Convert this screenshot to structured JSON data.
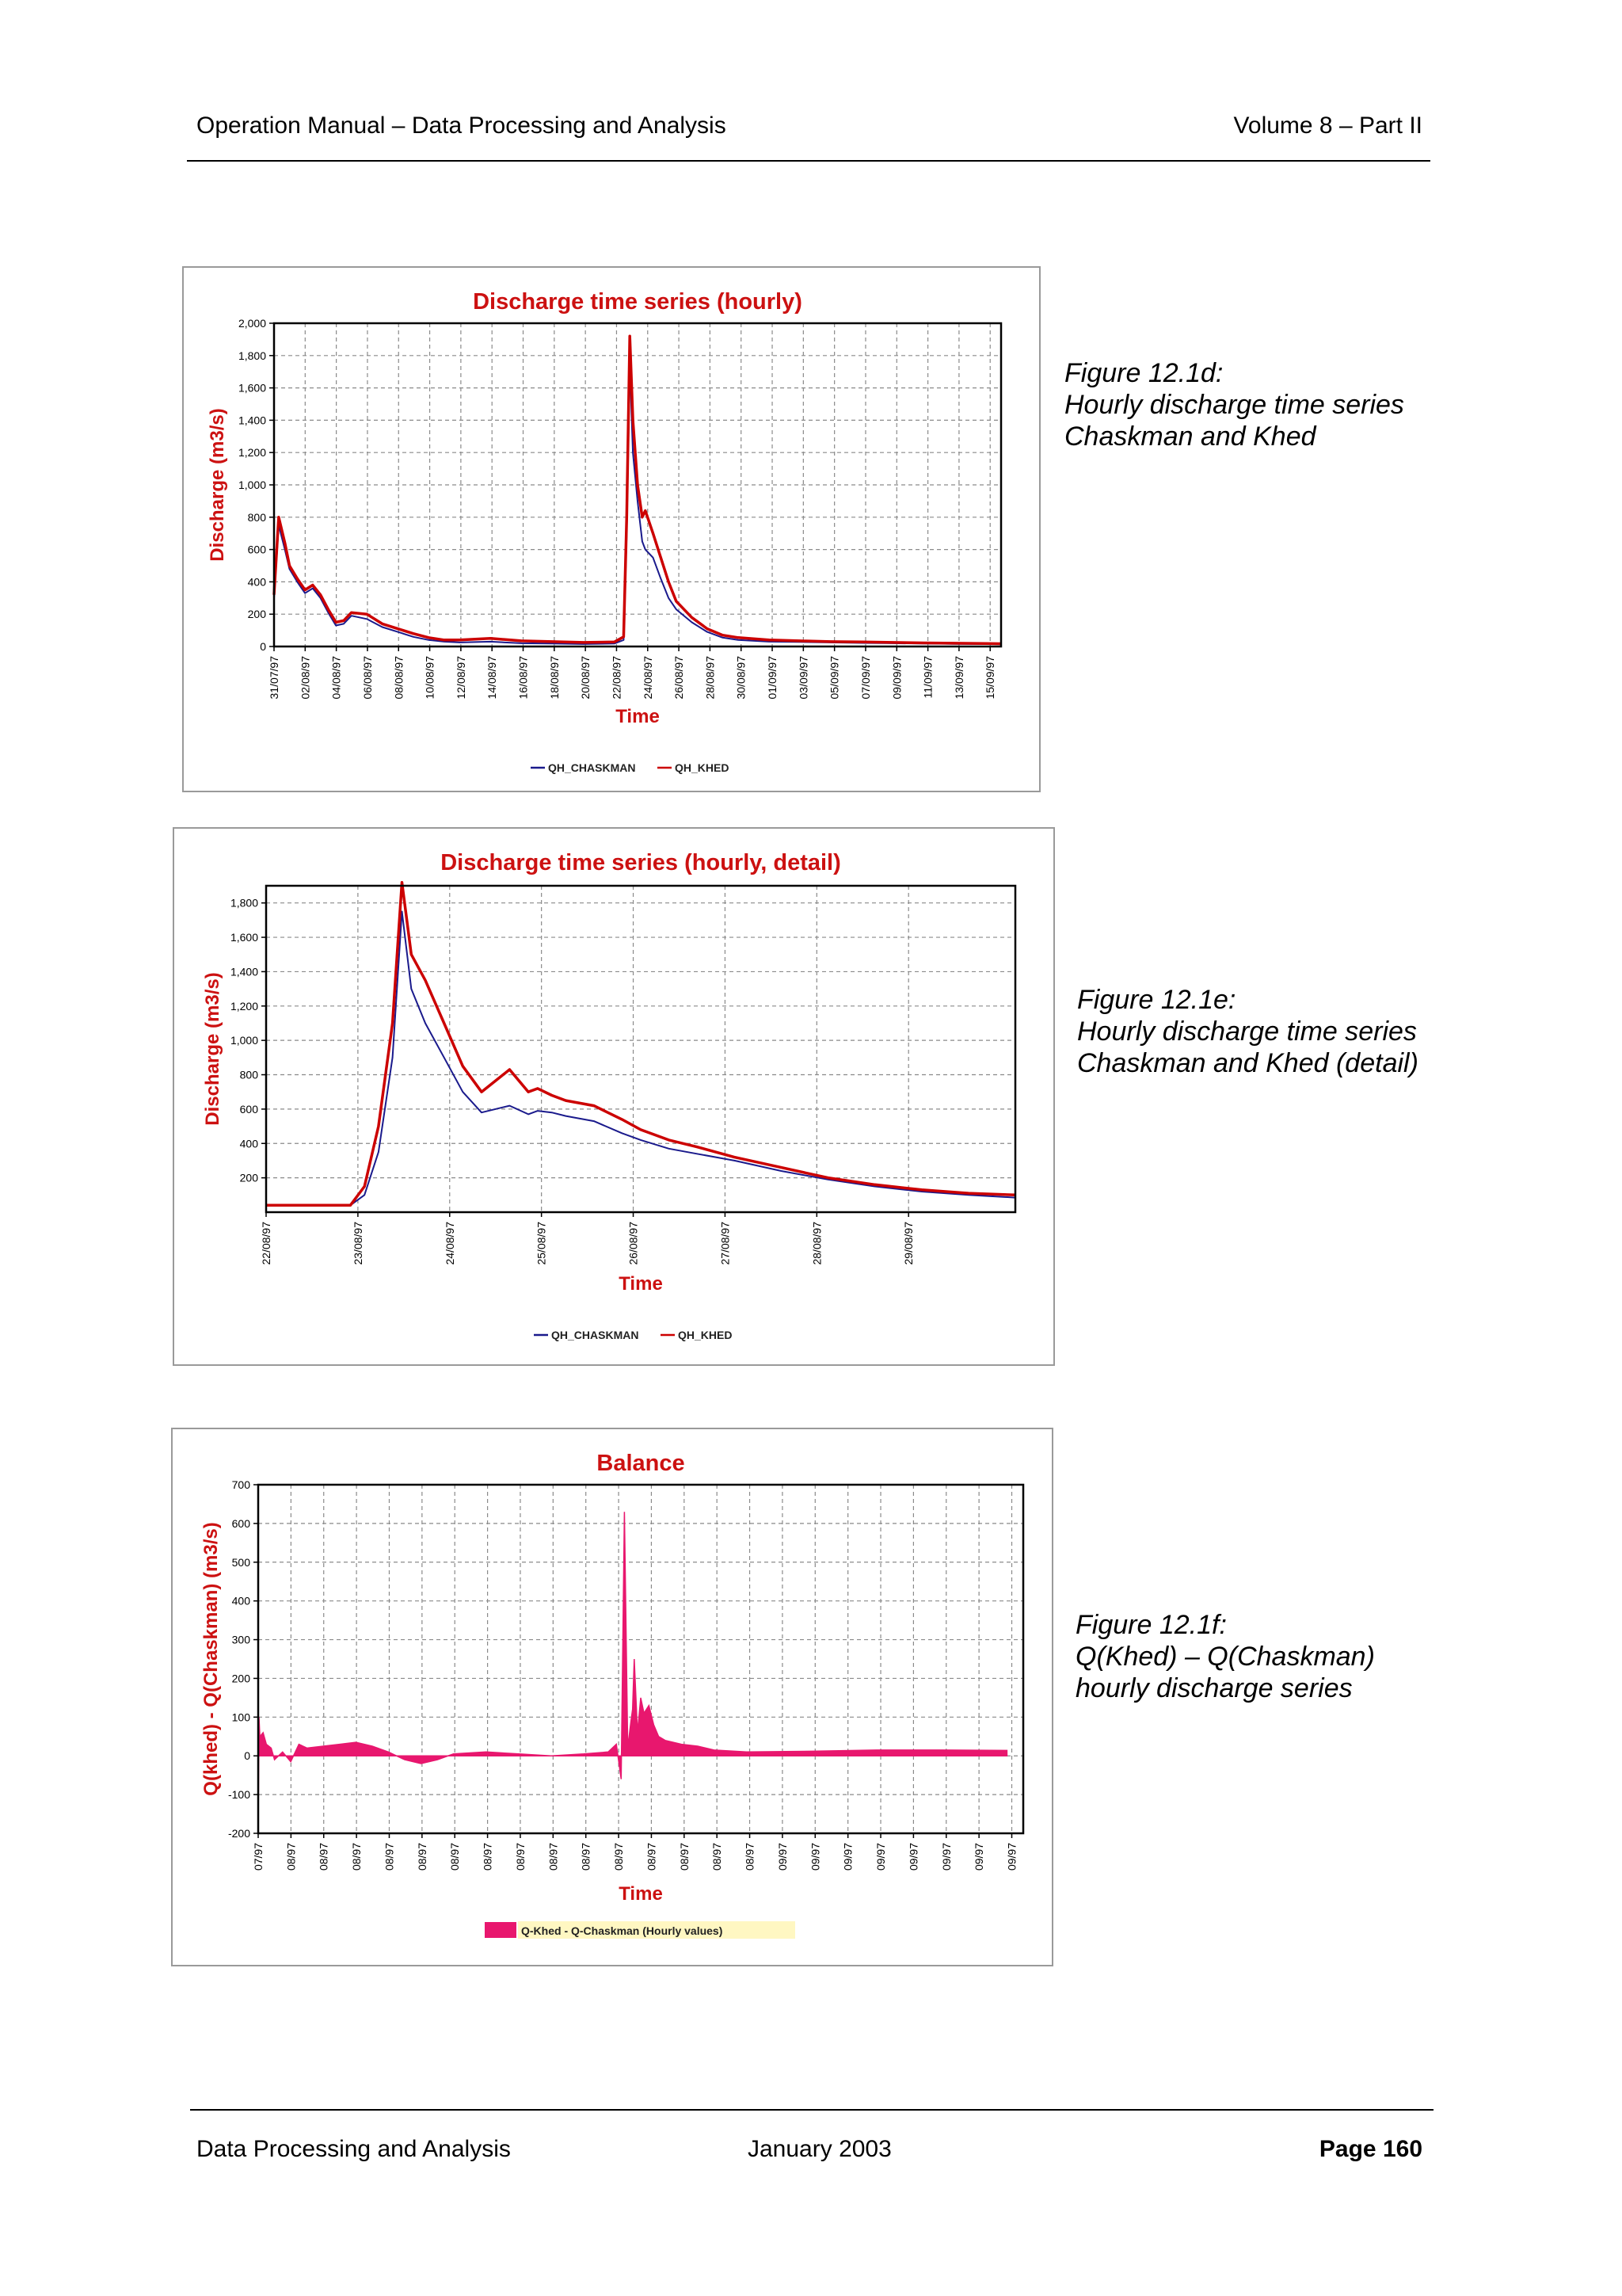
{
  "header": {
    "left": "Operation Manual – Data Processing and Analysis",
    "right": "Volume 8 – Part II"
  },
  "footer": {
    "left": "Data Processing and Analysis",
    "center": "January 2003",
    "right": "Page 160"
  },
  "figures": [
    {
      "caption": [
        "Figure 12.1d:",
        "Hourly discharge time series",
        "Chaskman and Khed"
      ],
      "chart_data": {
        "type": "line",
        "title": "Discharge time series (hourly)",
        "xlabel": "Time",
        "ylabel": "Discharge (m3/s)",
        "ylim": [
          0,
          2000
        ],
        "yticks": [
          "0",
          "200",
          "400",
          "600",
          "800",
          "1,000",
          "1,200",
          "1,400",
          "1,600",
          "1,800",
          "2,000"
        ],
        "xlim": [
          0,
          47
        ],
        "xticks": [
          "31/07/97",
          "02/08/97",
          "04/08/97",
          "06/08/97",
          "08/08/97",
          "10/08/97",
          "12/08/97",
          "14/08/97",
          "16/08/97",
          "18/08/97",
          "20/08/97",
          "22/08/97",
          "24/08/97",
          "26/08/97",
          "28/08/97",
          "30/08/97",
          "01/09/97",
          "03/09/97",
          "05/09/97",
          "07/09/97",
          "09/09/97",
          "11/09/97",
          "13/09/97",
          "15/09/97"
        ],
        "grid": true,
        "legend_position": "bottom",
        "series": [
          {
            "name": "QH_CHASKMAN",
            "color": "#1a1a8c",
            "x": [
              0,
              0.3,
              0.7,
              1,
              1.5,
              2,
              2.5,
              3,
              3.5,
              4,
              4.5,
              5,
              6,
              7,
              8,
              9,
              10,
              11,
              12,
              14,
              16,
              18,
              20,
              22,
              22.6,
              22.8,
              23,
              23.2,
              23.5,
              23.8,
              24,
              24.5,
              25,
              25.5,
              26,
              27,
              28,
              29,
              30,
              32,
              34,
              36,
              38,
              40,
              42,
              44,
              46,
              47
            ],
            "y": [
              300,
              750,
              600,
              480,
              400,
              330,
              360,
              300,
              210,
              130,
              140,
              190,
              170,
              120,
              90,
              60,
              40,
              30,
              25,
              30,
              20,
              18,
              15,
              18,
              40,
              700,
              1750,
              1200,
              900,
              650,
              600,
              550,
              420,
              300,
              230,
              150,
              90,
              55,
              40,
              30,
              28,
              25,
              22,
              20,
              18,
              16,
              15,
              14
            ]
          },
          {
            "name": "QH_KHED",
            "color": "#cc0000",
            "x": [
              0,
              0.3,
              0.7,
              1,
              1.5,
              2,
              2.5,
              3,
              3.5,
              4,
              4.5,
              5,
              6,
              7,
              8,
              9,
              10,
              11,
              12,
              14,
              16,
              18,
              20,
              22,
              22.6,
              22.8,
              23,
              23.2,
              23.5,
              23.8,
              24,
              24.5,
              25,
              25.5,
              26,
              27,
              28,
              29,
              30,
              32,
              34,
              36,
              38,
              40,
              42,
              44,
              46,
              47
            ],
            "y": [
              320,
              800,
              640,
              500,
              420,
              350,
              380,
              320,
              230,
              150,
              160,
              210,
              200,
              140,
              110,
              80,
              55,
              40,
              40,
              50,
              35,
              30,
              25,
              28,
              60,
              800,
              1920,
              1400,
              1000,
              800,
              840,
              700,
              550,
              400,
              280,
              180,
              110,
              70,
              55,
              40,
              35,
              30,
              28,
              25,
              22,
              20,
              18,
              17
            ]
          }
        ]
      }
    },
    {
      "caption": [
        "Figure 12.1e:",
        "Hourly discharge time series",
        "Chaskman and Khed (detail)"
      ],
      "chart_data": {
        "type": "line",
        "title": "Discharge time series (hourly, detail)",
        "xlabel": "Time",
        "ylabel": "Discharge (m3/s)",
        "ylim": [
          0,
          1900
        ],
        "yticks": [
          "200",
          "400",
          "600",
          "800",
          "1,000",
          "1,200",
          "1,400",
          "1,600",
          "1,800"
        ],
        "xlim": [
          0,
          8
        ],
        "xticks": [
          "22/08/97",
          "23/08/97",
          "24/08/97",
          "25/08/97",
          "26/08/97",
          "27/08/97",
          "28/08/97",
          "29/08/97"
        ],
        "grid": true,
        "legend_position": "bottom",
        "series": [
          {
            "name": "QH_CHASKMAN",
            "color": "#1a1a8c",
            "x": [
              0,
              0.9,
              1.05,
              1.2,
              1.35,
              1.45,
              1.55,
              1.7,
              1.9,
              2.1,
              2.3,
              2.6,
              2.8,
              2.9,
              3.05,
              3.2,
              3.5,
              3.8,
              4.0,
              4.3,
              4.6,
              5.0,
              5.5,
              6.0,
              6.5,
              7.0,
              7.5,
              8.0
            ],
            "y": [
              40,
              40,
              100,
              350,
              900,
              1750,
              1300,
              1100,
              900,
              700,
              580,
              620,
              570,
              590,
              580,
              560,
              530,
              460,
              420,
              370,
              340,
              300,
              240,
              190,
              150,
              120,
              100,
              85
            ]
          },
          {
            "name": "QH_KHED",
            "color": "#cc0000",
            "x": [
              0,
              0.9,
              1.05,
              1.2,
              1.35,
              1.45,
              1.55,
              1.7,
              1.9,
              2.1,
              2.3,
              2.6,
              2.8,
              2.9,
              3.05,
              3.2,
              3.5,
              3.8,
              4.0,
              4.3,
              4.6,
              5.0,
              5.5,
              6.0,
              6.5,
              7.0,
              7.5,
              8.0
            ],
            "y": [
              40,
              40,
              150,
              500,
              1100,
              1920,
              1500,
              1350,
              1100,
              850,
              700,
              830,
              700,
              720,
              680,
              650,
              620,
              540,
              480,
              420,
              380,
              320,
              260,
              200,
              160,
              130,
              110,
              100
            ]
          }
        ]
      }
    },
    {
      "caption": [
        "Figure 12.1f:",
        "Q(Khed) – Q(Chaskman)",
        "hourly discharge series"
      ],
      "chart_data": {
        "type": "area",
        "title": "Balance",
        "xlabel": "Time",
        "ylabel": "Q(khed) - Q(Chaskman) (m3/s)",
        "ylim": [
          -200,
          700
        ],
        "yticks": [
          "-200",
          "-100",
          "0",
          "100",
          "200",
          "300",
          "400",
          "500",
          "600",
          "700"
        ],
        "xlim": [
          0,
          47
        ],
        "xticks": [
          "07/97",
          "08/97",
          "08/97",
          "08/97",
          "08/97",
          "08/97",
          "08/97",
          "08/97",
          "08/97",
          "08/97",
          "08/97",
          "08/97",
          "08/97",
          "08/97",
          "08/97",
          "08/97",
          "09/97",
          "09/97",
          "09/97",
          "09/97",
          "09/97",
          "09/97",
          "09/97",
          "09/97"
        ],
        "grid": true,
        "legend_position": "bottom",
        "series": [
          {
            "name": "Q-Khed - Q-Chaskman (Hourly values)",
            "color": "#e8176e",
            "x": [
              0,
              0.05,
              0.1,
              0.3,
              0.5,
              0.8,
              1,
              1.5,
              2,
              2.5,
              3,
              4,
              5,
              6,
              7,
              8,
              9,
              10,
              11,
              12,
              14,
              16,
              18,
              20,
              21.5,
              22,
              22.3,
              22.5,
              22.7,
              22.9,
              23.0,
              23.1,
              23.3,
              23.5,
              23.7,
              24,
              24.3,
              24.6,
              25,
              26,
              27,
              28,
              30,
              34,
              38,
              42,
              46
            ],
            "y": [
              -200,
              100,
              50,
              60,
              30,
              20,
              -10,
              10,
              -15,
              30,
              20,
              25,
              30,
              35,
              25,
              10,
              -10,
              -20,
              -10,
              5,
              10,
              5,
              0,
              5,
              10,
              30,
              -60,
              630,
              20,
              90,
              120,
              250,
              60,
              150,
              110,
              130,
              80,
              50,
              40,
              30,
              25,
              15,
              10,
              12,
              15,
              15,
              14
            ]
          }
        ]
      }
    }
  ]
}
